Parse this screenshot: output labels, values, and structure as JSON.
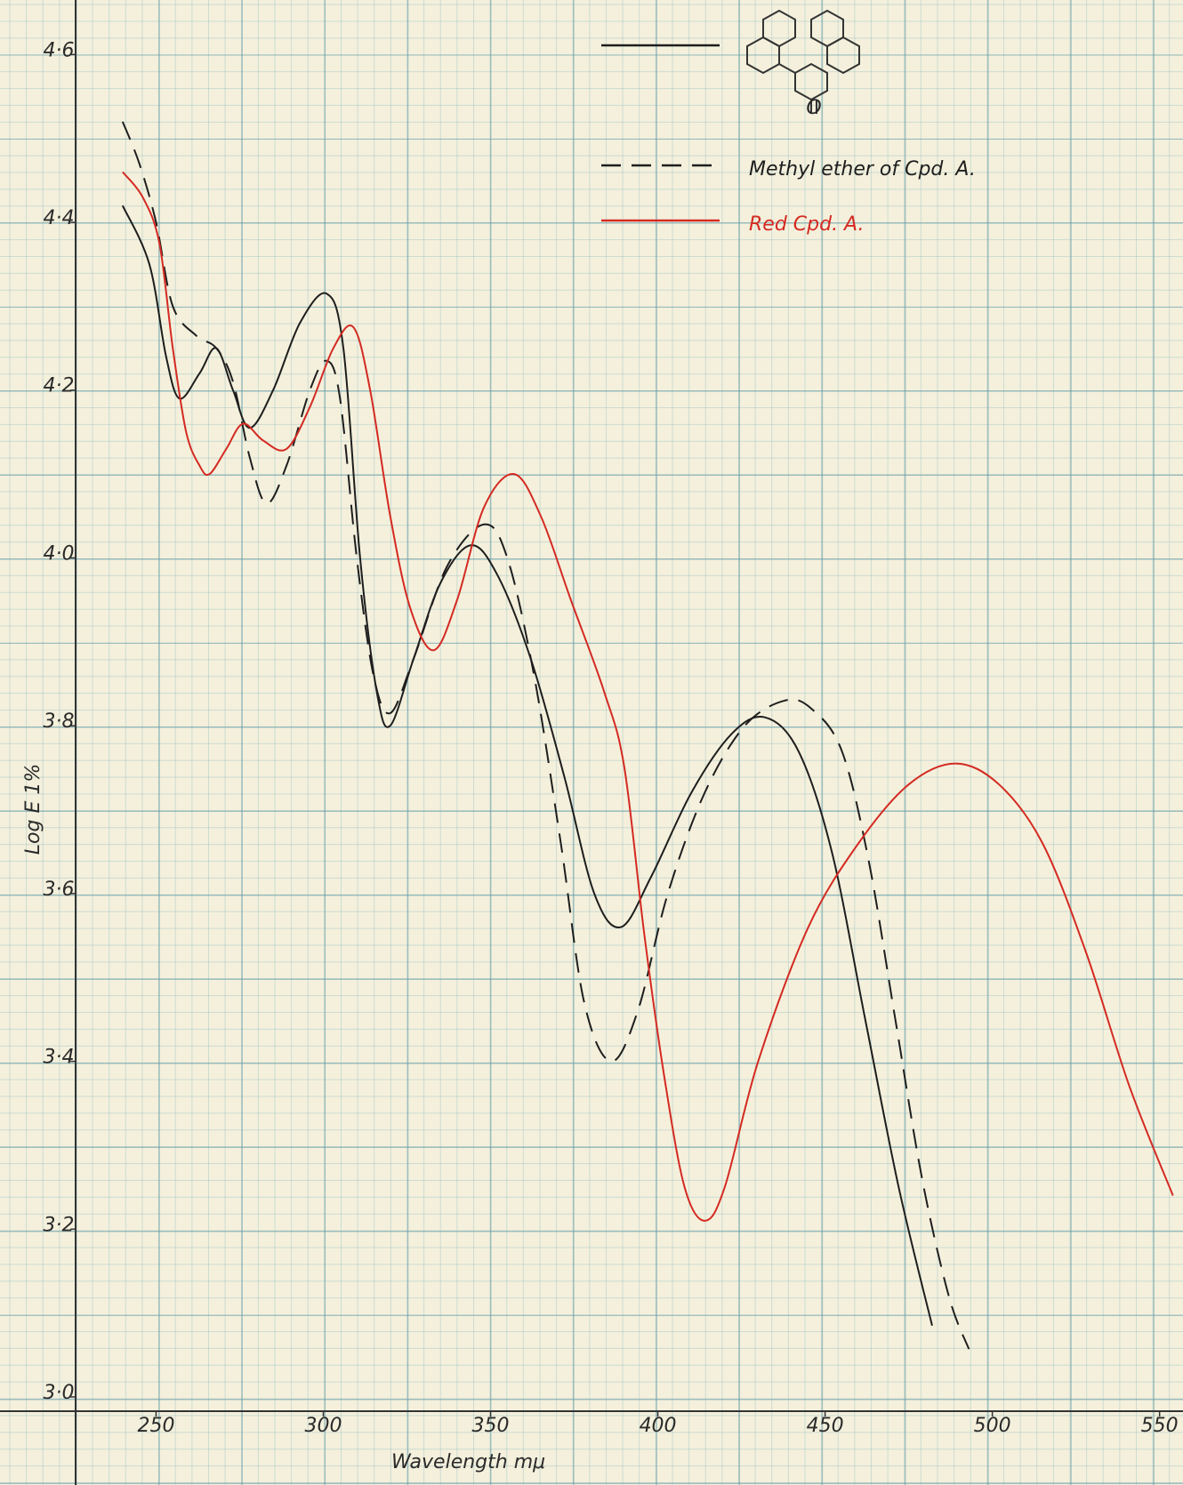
{
  "chart_data": {
    "type": "line",
    "x_label": "Wavelength   mμ",
    "y_label": "Log E 1%",
    "legend_structure_label": "O",
    "xlim": [
      226,
      557
    ],
    "ylim": [
      2.983,
      4.665
    ],
    "xticks": [
      250,
      300,
      350,
      400,
      450,
      500,
      550
    ],
    "yticks": [
      {
        "value": 3.0,
        "label": "3·0"
      },
      {
        "value": 3.2,
        "label": "3·2"
      },
      {
        "value": 3.4,
        "label": "3·4"
      },
      {
        "value": 3.6,
        "label": "3·6"
      },
      {
        "value": 3.8,
        "label": "3·8"
      },
      {
        "value": 4.0,
        "label": "4·0"
      },
      {
        "value": 4.2,
        "label": "4·2"
      },
      {
        "value": 4.4,
        "label": "4·4"
      },
      {
        "value": 4.6,
        "label": "4·6"
      }
    ],
    "series": [
      {
        "color": "#1e1e1e",
        "dash": "solid",
        "x": [
          240,
          248,
          253,
          257,
          263,
          268,
          273,
          278,
          285,
          293,
          301,
          306,
          311,
          316,
          320,
          327,
          335,
          344,
          352,
          362,
          372,
          381,
          389,
          398,
          410,
          422,
          432,
          442,
          452,
          462,
          472,
          482
        ],
        "values": [
          4.42,
          4.35,
          4.24,
          4.19,
          4.22,
          4.25,
          4.2,
          4.155,
          4.2,
          4.28,
          4.315,
          4.25,
          4.0,
          3.84,
          3.8,
          3.88,
          3.97,
          4.015,
          3.98,
          3.88,
          3.74,
          3.6,
          3.56,
          3.62,
          3.72,
          3.79,
          3.81,
          3.77,
          3.65,
          3.45,
          3.25,
          3.085
        ]
      },
      {
        "name": "Methyl ether of Cpd. A.",
        "color": "#1e1e1e",
        "dash": "dashed",
        "x": [
          240,
          245,
          250,
          255,
          262,
          268,
          273,
          278,
          283,
          289,
          296,
          301,
          305,
          310,
          315,
          320,
          327,
          337,
          348,
          355,
          363,
          371,
          378,
          386,
          394,
          403,
          414,
          426,
          438,
          446,
          455,
          463,
          471,
          479,
          487,
          493
        ],
        "values": [
          4.52,
          4.47,
          4.4,
          4.3,
          4.265,
          4.25,
          4.21,
          4.12,
          4.065,
          4.11,
          4.2,
          4.235,
          4.19,
          4.0,
          3.86,
          3.815,
          3.88,
          3.99,
          4.04,
          4.0,
          3.86,
          3.66,
          3.47,
          3.4,
          3.46,
          3.6,
          3.72,
          3.8,
          3.83,
          3.82,
          3.77,
          3.64,
          3.45,
          3.26,
          3.12,
          3.057
        ]
      },
      {
        "name": "Red Cpd. A.",
        "color": "#d42a22",
        "dash": "solid",
        "x": [
          240,
          246,
          251,
          255,
          259,
          263,
          266,
          271,
          276,
          282,
          289,
          296,
          303,
          309,
          314,
          320,
          326,
          333,
          340,
          348,
          357,
          365,
          374,
          384,
          390,
          396,
          402,
          408,
          414,
          420,
          430,
          445,
          460,
          475,
          489,
          502,
          515,
          528,
          541,
          554
        ],
        "values": [
          4.46,
          4.43,
          4.375,
          4.25,
          4.15,
          4.11,
          4.1,
          4.13,
          4.16,
          4.14,
          4.13,
          4.18,
          4.25,
          4.275,
          4.2,
          4.05,
          3.94,
          3.89,
          3.95,
          4.06,
          4.1,
          4.05,
          3.95,
          3.84,
          3.75,
          3.55,
          3.38,
          3.25,
          3.21,
          3.25,
          3.4,
          3.56,
          3.66,
          3.73,
          3.755,
          3.73,
          3.66,
          3.53,
          3.37,
          3.24
        ]
      }
    ]
  }
}
